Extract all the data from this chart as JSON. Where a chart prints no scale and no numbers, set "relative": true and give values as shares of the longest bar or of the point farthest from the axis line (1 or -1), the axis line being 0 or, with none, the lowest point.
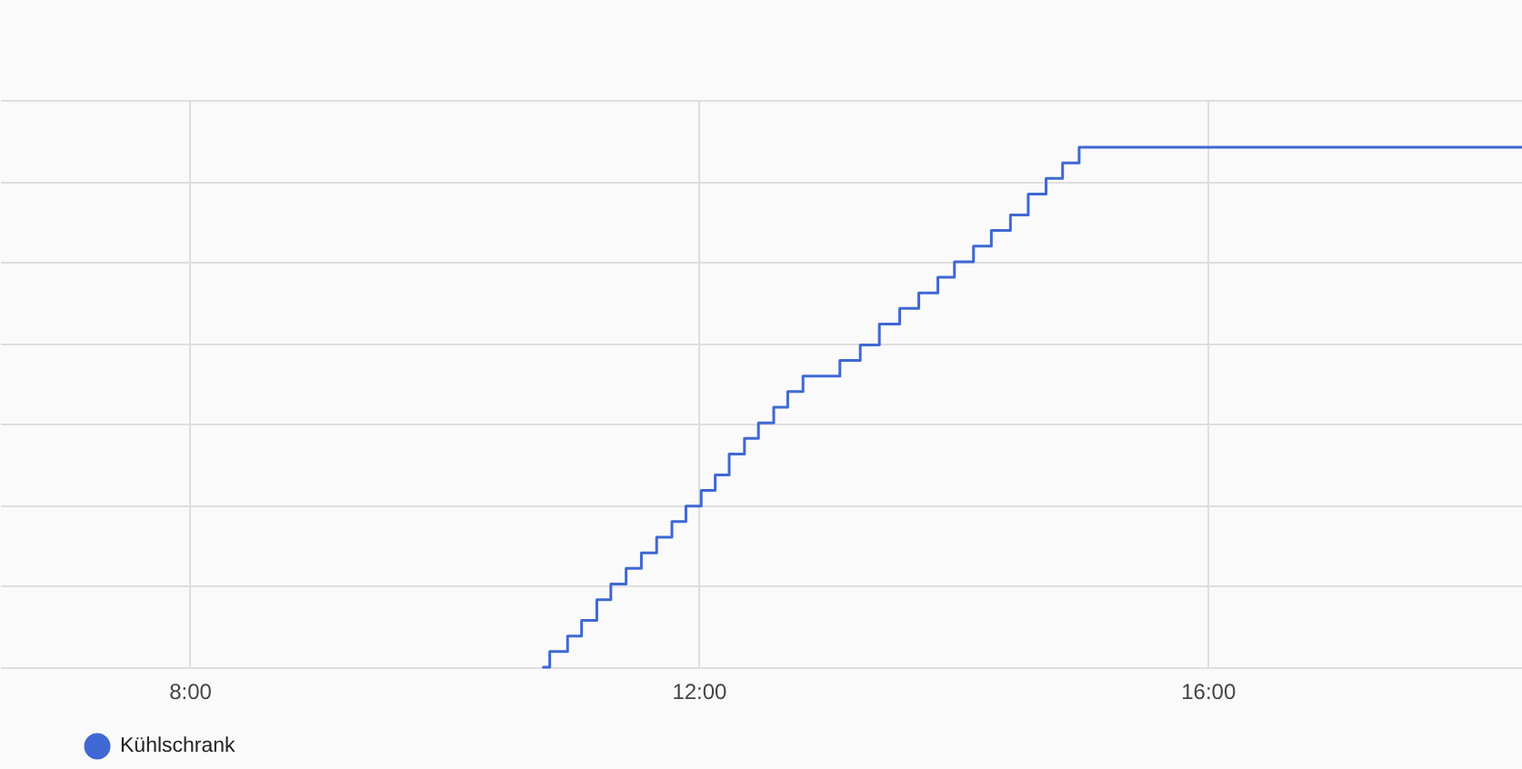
{
  "chart_data": {
    "type": "step",
    "x": [
      10.78,
      10.83,
      10.97,
      11.08,
      11.2,
      11.31,
      11.43,
      11.55,
      11.67,
      11.79,
      11.9,
      12.02,
      12.13,
      12.24,
      12.36,
      12.47,
      12.59,
      12.7,
      12.82,
      13.11,
      13.27,
      13.42,
      13.58,
      13.73,
      13.88,
      14.01,
      14.16,
      14.3,
      14.45,
      14.59,
      14.73,
      14.86,
      14.99,
      18.47
    ],
    "series": [
      {
        "name": "Kühlschrank",
        "color": "#3f68d4",
        "values": [
          0,
          0.03,
          0.06,
          0.09,
          0.13,
          0.16,
          0.19,
          0.22,
          0.25,
          0.28,
          0.31,
          0.34,
          0.37,
          0.41,
          0.44,
          0.47,
          0.5,
          0.53,
          0.56,
          0.59,
          0.62,
          0.66,
          0.69,
          0.72,
          0.75,
          0.78,
          0.81,
          0.84,
          0.87,
          0.91,
          0.94,
          0.97,
          1,
          1
        ]
      }
    ],
    "relative": true,
    "xlim": [
      6.51,
      18.47
    ],
    "xticks": [
      {
        "value": 8,
        "label": "8:00"
      },
      {
        "value": 12,
        "label": "12:00"
      },
      {
        "value": 16,
        "label": "16:00"
      }
    ],
    "grid": true,
    "legend": "bottom left",
    "tick_labels": "x",
    "line_style": "solid"
  }
}
